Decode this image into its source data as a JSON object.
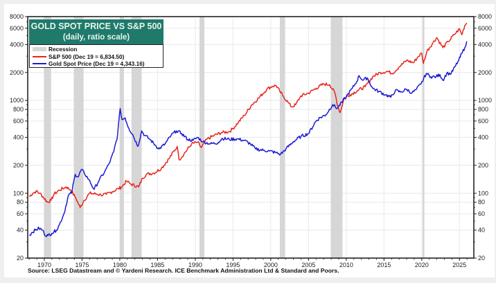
{
  "chart_data": {
    "type": "line",
    "title": "GOLD SPOT PRICE VS S&P 500",
    "subtitle": "(daily, ratio scale)",
    "xlabel": "",
    "ylabel": "",
    "y_scale": "log",
    "ylim": [
      20,
      8000
    ],
    "xlim": [
      1967.8,
      2026.9
    ],
    "y_ticks": [
      20,
      40,
      60,
      80,
      100,
      200,
      400,
      600,
      800,
      1000,
      2000,
      4000,
      6000,
      8000
    ],
    "y_tick_labels": [
      "20",
      "40",
      "60",
      "80",
      "100",
      "200",
      "400",
      "600",
      "800",
      "1000",
      "2000",
      "4000",
      "6000",
      "8000"
    ],
    "x_ticks": [
      1970,
      1975,
      1980,
      1985,
      1990,
      1995,
      2000,
      2005,
      2010,
      2015,
      2020,
      2025
    ],
    "x_tick_labels": [
      "1970",
      "1975",
      "1980",
      "1985",
      "1990",
      "1995",
      "2000",
      "2005",
      "2010",
      "2015",
      "2020",
      "2025"
    ],
    "grid": true,
    "legend_position": "top-left",
    "legend": [
      {
        "label": "Recession",
        "type": "band"
      },
      {
        "label": "S&P 500 (Dec 19 = 6,834.50)",
        "type": "line",
        "color": "#e8241c"
      },
      {
        "label": "Gold Spot Price (Dec 19 = 4,343.16)",
        "type": "line",
        "color": "#1a1ad6"
      }
    ],
    "recessions": [
      [
        1969.95,
        1970.9
      ],
      [
        1973.9,
        1975.2
      ],
      [
        1980.0,
        1980.55
      ],
      [
        1981.55,
        1982.9
      ],
      [
        1990.55,
        1991.2
      ],
      [
        2001.2,
        2001.9
      ],
      [
        2007.95,
        2009.5
      ],
      [
        2020.1,
        2020.35
      ]
    ],
    "series": [
      {
        "name": "S&P 500",
        "color": "#e8241c",
        "x": [
          1968.0,
          1968.5,
          1968.9,
          1969.4,
          1969.9,
          1970.4,
          1970.9,
          1971.3,
          1972.0,
          1972.9,
          1973.5,
          1974.2,
          1974.75,
          1975.2,
          1976.0,
          1976.9,
          1977.5,
          1978.2,
          1979.0,
          1979.8,
          1980.2,
          1980.9,
          1981.5,
          1982.5,
          1983.0,
          1983.5,
          1984.5,
          1985.5,
          1986.5,
          1987.6,
          1987.85,
          1988.5,
          1989.5,
          1990.3,
          1990.8,
          1991.5,
          1992.5,
          1993.5,
          1994.5,
          1995.0,
          1995.7,
          1996.5,
          1997.5,
          1998.5,
          1999.5,
          2000.2,
          2000.7,
          2001.2,
          2001.7,
          2002.3,
          2002.75,
          2003.3,
          2004.0,
          2005.0,
          2006.0,
          2007.0,
          2007.8,
          2008.5,
          2008.9,
          2009.2,
          2009.7,
          2010.5,
          2011.5,
          2012.5,
          2013.5,
          2014.5,
          2015.5,
          2016.1,
          2017.0,
          2018.0,
          2018.9,
          2019.5,
          2020.0,
          2020.22,
          2020.7,
          2021.5,
          2022.0,
          2022.8,
          2023.5,
          2024.3,
          2025.0,
          2025.3,
          2025.7,
          2025.96
        ],
        "values": [
          92,
          100,
          105,
          100,
          90,
          80,
          84,
          98,
          108,
          117,
          108,
          88,
          70,
          82,
          100,
          98,
          96,
          97,
          104,
          112,
          116,
          135,
          125,
          117,
          145,
          160,
          165,
          185,
          235,
          320,
          230,
          265,
          340,
          355,
          310,
          380,
          420,
          450,
          460,
          500,
          580,
          690,
          900,
          1080,
          1330,
          1420,
          1450,
          1250,
          1100,
          950,
          850,
          900,
          1120,
          1200,
          1350,
          1500,
          1480,
          1200,
          850,
          740,
          1050,
          1150,
          1280,
          1400,
          1800,
          2000,
          2050,
          1950,
          2300,
          2700,
          2550,
          2950,
          3230,
          2500,
          3400,
          4200,
          4750,
          3700,
          4300,
          5100,
          5900,
          5100,
          6400,
          6830
        ]
      },
      {
        "name": "Gold Spot Price",
        "color": "#1a1ad6",
        "x": [
          1968.0,
          1968.4,
          1968.8,
          1969.3,
          1969.8,
          1970.0,
          1970.5,
          1971.0,
          1971.6,
          1972.0,
          1972.6,
          1973.2,
          1973.6,
          1974.1,
          1974.5,
          1974.9,
          1975.3,
          1975.9,
          1976.6,
          1977.3,
          1978.0,
          1978.6,
          1979.2,
          1979.7,
          1980.05,
          1980.3,
          1980.7,
          1981.2,
          1981.7,
          1982.4,
          1982.9,
          1983.3,
          1984.0,
          1984.7,
          1985.2,
          1986.0,
          1986.8,
          1987.5,
          1988.2,
          1989.0,
          1989.7,
          1990.3,
          1991.0,
          1992.0,
          1993.0,
          1993.6,
          1994.5,
          1995.5,
          1996.5,
          1997.3,
          1998.0,
          1999.0,
          1999.8,
          2000.6,
          2001.3,
          2002.0,
          2003.0,
          2004.0,
          2005.0,
          2006.0,
          2006.5,
          2007.3,
          2008.2,
          2008.8,
          2009.4,
          2010.0,
          2010.8,
          2011.4,
          2011.7,
          2012.2,
          2012.8,
          2013.5,
          2014.3,
          2015.2,
          2015.9,
          2016.5,
          2017.2,
          2018.0,
          2018.7,
          2019.3,
          2019.9,
          2020.6,
          2021.2,
          2021.9,
          2022.4,
          2022.8,
          2023.3,
          2023.9,
          2024.4,
          2024.9,
          2025.3,
          2025.7,
          2025.96
        ],
        "values": [
          35,
          38,
          40,
          42,
          40,
          36,
          35,
          37,
          40,
          46,
          60,
          95,
          100,
          160,
          150,
          180,
          165,
          140,
          110,
          140,
          170,
          210,
          280,
          420,
          820,
          620,
          650,
          500,
          430,
          320,
          470,
          420,
          380,
          330,
          300,
          340,
          420,
          470,
          440,
          380,
          370,
          400,
          360,
          340,
          350,
          390,
          380,
          385,
          370,
          340,
          300,
          290,
          285,
          275,
          262,
          300,
          360,
          410,
          440,
          600,
          650,
          700,
          900,
          820,
          950,
          1100,
          1350,
          1600,
          1850,
          1650,
          1750,
          1350,
          1250,
          1150,
          1080,
          1280,
          1230,
          1320,
          1200,
          1320,
          1500,
          1950,
          1800,
          1800,
          1900,
          1650,
          1950,
          1950,
          2300,
          2700,
          3200,
          3700,
          4340
        ]
      }
    ],
    "source_note": "Source: LSEG Datastream and © Yardeni Research. ICE Benchmark Administration Ltd & Standard and Poors."
  }
}
